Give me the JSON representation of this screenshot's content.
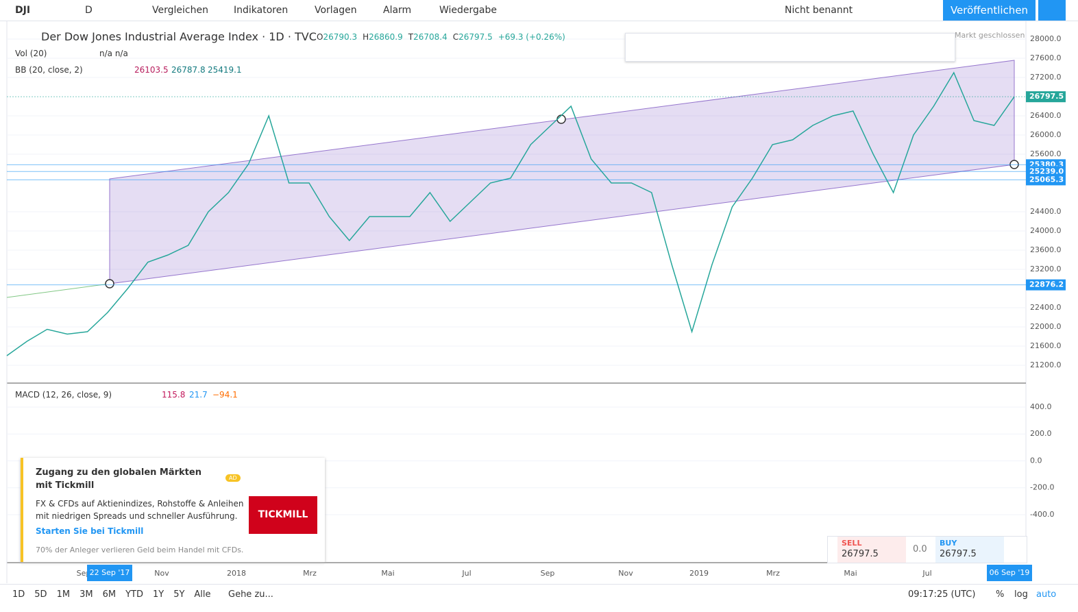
{
  "toolbar": {
    "symbol": "DJI",
    "interval": "D",
    "compare": "Vergleichen",
    "indicators": "Indikatoren",
    "templates": "Vorlagen",
    "alert": "Alarm",
    "replay": "Wiedergabe",
    "layout_name": "Nicht benannt",
    "publish": "Veröffentlichen"
  },
  "legend": {
    "title": "Der Dow Jones Industrial Average Index · 1D · TVC",
    "ohlc": [
      {
        "label": "O",
        "value": "26790.3"
      },
      {
        "label": "H",
        "value": "26860.9"
      },
      {
        "label": "T",
        "value": "26708.4"
      },
      {
        "label": "C",
        "value": "26797.5"
      }
    ],
    "change": "+69.3 (+0.26%)",
    "vol": "Vol (20)",
    "vol_values": "n/a  n/a",
    "bb": "BB (20, close, 2)",
    "bb_values": [
      "26103.5",
      "26787.8",
      "25419.1"
    ]
  },
  "market_status": "Markt geschlossen",
  "chart_data": {
    "type": "line",
    "values": [
      21400,
      21700,
      21950,
      21850,
      21900,
      22300,
      22800,
      23350,
      23500,
      23700,
      24400,
      24800,
      25400,
      26400,
      25000,
      25000,
      24300,
      23800,
      24300,
      24300,
      24300,
      24800,
      24200,
      24600,
      25000,
      25100,
      25800,
      26200,
      26600,
      25500,
      25000,
      25000,
      24800,
      23300,
      21900,
      23300,
      24500,
      25100,
      25800,
      25900,
      26200,
      26400,
      26500,
      25600,
      24800,
      26000,
      26600,
      27300,
      26300,
      26200,
      26797.5
    ],
    "color": "#26a69a",
    "ylim": [
      20843,
      28314
    ],
    "yticks": [
      {
        "value": 21200,
        "label": "21200.0"
      },
      {
        "value": 21600,
        "label": "21600.0"
      },
      {
        "value": 22000,
        "label": "22000.0"
      },
      {
        "value": 22400,
        "label": "22400.0"
      },
      {
        "value": 23200,
        "label": "23200.0"
      },
      {
        "value": 23600,
        "label": "23600.0"
      },
      {
        "value": 24000,
        "label": "24000.0"
      },
      {
        "value": 24400,
        "label": "24400.0"
      },
      {
        "value": 25600,
        "label": "25600.0"
      },
      {
        "value": 26000,
        "label": "26000.0"
      },
      {
        "value": 26400,
        "label": "26400.0"
      },
      {
        "value": 27200,
        "label": "27200.0"
      },
      {
        "value": 27600,
        "label": "27600.0"
      },
      {
        "value": 28000,
        "label": "28000.0"
      }
    ],
    "price_labels": [
      26797.5,
      {
        "value": 25380.3,
        "label": "25380.3"
      },
      {
        "value": 25239,
        "label": "25239.0"
      },
      {
        "value": 25065.3,
        "label": "25065.3"
      },
      {
        "value": 22876.2,
        "label": "22876.2"
      }
    ],
    "x_labels": [
      "Sep",
      "Nov",
      "2018",
      "Mrz",
      "Mai",
      "Jul",
      "Sep",
      "Nov",
      "2019",
      "Mrz",
      "Mai",
      "Jul"
    ],
    "x_range": [
      "22 Sep '17",
      "06 Sep '19"
    ]
  },
  "macd": {
    "title": "MACD (12, 26, close, 9)",
    "values": [
      "115.8",
      "21.7",
      "−94.1"
    ],
    "ylim": [
      -752,
      563
    ],
    "yticks": [
      {
        "value": 400,
        "label": "400.0"
      },
      {
        "value": 200,
        "label": "200.0"
      },
      {
        "value": 0,
        "label": "0.0"
      },
      {
        "value": -200,
        "label": "-200.0"
      },
      {
        "value": -400,
        "label": "-400.0"
      }
    ]
  },
  "ad": {
    "title": "Zugang zu den globalen Märkten mit Tickmill",
    "badge": "AD",
    "body": "FX & CFDs auf Aktienindizes, Rohstoffe & Anleihen mit niedrigen Spreads und schneller Ausführung.",
    "link": "Starten Sie bei Tickmill",
    "disclaimer": "70% der Anleger verlieren Geld beim Handel mit CFDs.",
    "logo": "TICKMILL"
  },
  "trade": {
    "sell": "SELL",
    "sell_price": "26797.5",
    "spread": "0.0",
    "buy": "BUY",
    "buy_price": "26797.5"
  },
  "bottom": {
    "ranges": [
      "1D",
      "5D",
      "1M",
      "3M",
      "6M",
      "YTD",
      "1Y",
      "5Y",
      "Alle"
    ],
    "goto": "Gehe zu...",
    "time": "09:17:25 (UTC)",
    "percent": "%",
    "log": "log",
    "auto": "auto"
  }
}
